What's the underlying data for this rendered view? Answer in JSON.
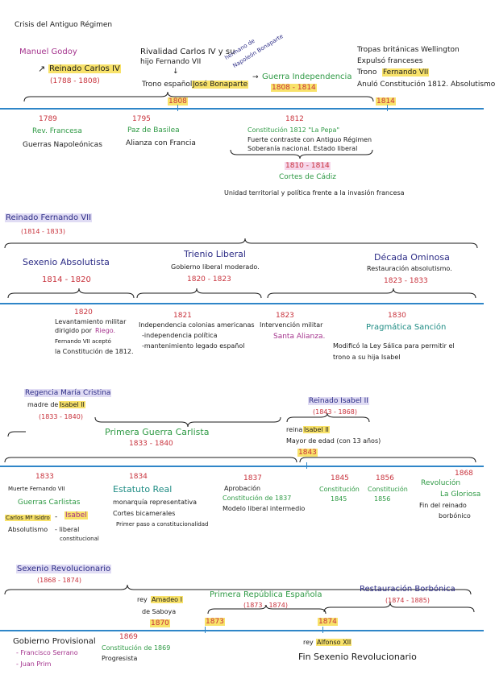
{
  "s1": {
    "title": "Crisis del Antiguo Régimen",
    "godoy": "Manuel Godoy",
    "carlos": "Reinado Carlos IV",
    "carlos_years": "(1788 - 1808)",
    "rivalidad_1": "Rivalidad Carlos IV y su",
    "rivalidad_2": "hijo Fernando VII",
    "trono": "Trono español :",
    "jose": "José Bonaparte",
    "hermano_1": "hermano de",
    "hermano_2": "Napoleón Bonaparte",
    "guerra": "Guerra Independencia",
    "guerra_years": "1808 - 1814",
    "tropas_1": "Tropas británicas Wellington",
    "tropas_2": "Expulsó franceses",
    "trono_2": "Trono",
    "fernando": "Fernando VII",
    "anulo": "Anuló Constitución 1812. Absolutismo",
    "y1808": "1808",
    "y1814": "1814",
    "y1789": "1789",
    "rev": "Rev. Francesa",
    "guerras_nap": "Guerras Napoleónicas",
    "y1795": "1795",
    "paz": "Paz de Basilea",
    "alianza": "Alianza con Francia",
    "y1812": "1812",
    "const_1812": "Constitución 1812 \"La Pepa\"",
    "fuerte_1": "Fuerte contraste con Antiguo Régimen",
    "fuerte_2": "Soberanía nacional. Estado liberal",
    "cortes_years": "1810 - 1814",
    "cortes": "Cortes de Cádiz",
    "unidad": "Unidad territorial y política frente a la invasión francesa"
  },
  "s2": {
    "title": "Reinado Fernando VII",
    "years": "(1814 - 1833)",
    "sexenio": "Sexenio Absolutista",
    "sexenio_years": "1814 - 1820",
    "trienio": "Trienio Liberal",
    "trienio_desc": "Gobierno liberal moderado.",
    "trienio_years": "1820 - 1823",
    "decada": "Década Ominosa",
    "decada_desc": "Restauración absolutismo.",
    "decada_years": "1823 - 1833",
    "y1820": "1820",
    "lev_1": "Levantamiento militar",
    "lev_2": "dirigido por",
    "riego": "Riego.",
    "lev_3": "Fernando VII aceptó",
    "lev_4": "la Constitución de 1812.",
    "y1821": "1821",
    "indep_1": "Independencia colonias americanas",
    "indep_2": "-independencia política",
    "indep_3": "-mantenimiento legado español",
    "y1823": "1823",
    "interv": "Intervención militar",
    "santa": "Santa Alianza.",
    "y1830": "1830",
    "pragmatica": "Pragmática Sanción",
    "modif_1": "Modificó la Ley Sálica para permitir el",
    "modif_2": "trono a su hija Isabel"
  },
  "s3": {
    "regencia": "Regencia María Cristina",
    "madre": "madre de",
    "isabel": "Isabel II",
    "regencia_years": "(1833 - 1840)",
    "reinado_isabel": "Reinado Isabel II",
    "reinado_years": "(1843 - 1868)",
    "reina": "reina",
    "isabel2": "Isabel II",
    "mayor": "Mayor de edad (con 13 años)",
    "y1843": "1843",
    "primera": "Primera Guerra Carlista",
    "primera_years": "1833 - 1840",
    "y1833": "1833",
    "muerte": "Muerte Fernando VII",
    "guerras_carlistas": "Guerras Carlistas",
    "carlos_isidro": "Carlos Mª Isidro",
    "dash": "-",
    "isabel3": "Isabel",
    "absolutismo": "Absolutismo",
    "liberal": "- liberal",
    "constitucional": "constitucional",
    "y1834": "1834",
    "estatuto": "Estatuto Real",
    "monarquia": "monarquía representativa",
    "cortes": "Cortes bicamerales",
    "primer_paso": "Primer paso a constitucionalidad",
    "y1837": "1837",
    "aprobacion": "Aprobación",
    "const_1837": "Constitución de 1837",
    "modelo": "Modelo liberal intermedio",
    "y1845": "1845",
    "const_1845_a": "Constitución",
    "const_1845_b": "1845",
    "y1856": "1856",
    "const_1856_a": "Constitución",
    "const_1856_b": "1856",
    "y1868": "1868",
    "revolucion": "Revolución",
    "gloriosa": "La Gloriosa",
    "fin_1": "Fin del reinado",
    "fin_2": "borbónico"
  },
  "s4": {
    "title": "Sexenio Revolucionario",
    "years": "(1868 - 1874)",
    "rey": "rey",
    "amadeo": "Amadeo I",
    "saboya": "de Saboya",
    "y1870": "1870",
    "republica": "Primera República Española",
    "republica_years": "(1873 - 1874)",
    "y1873": "1873",
    "restauracion": "Restauración Borbónica",
    "restauracion_years": "(1874 - 1885)",
    "y1874": "1874",
    "gobierno": "Gobierno Provisional",
    "serrano": "- Francisco Serrano",
    "prim": "- Juan Prim",
    "y1869": "1869",
    "const_1869": "Constitución de 1869",
    "progresista": "Progresista",
    "rey2": "rey",
    "alfonso": "Alfonso XII",
    "fin_sexenio": "Fin Sexenio Revolucionario"
  }
}
